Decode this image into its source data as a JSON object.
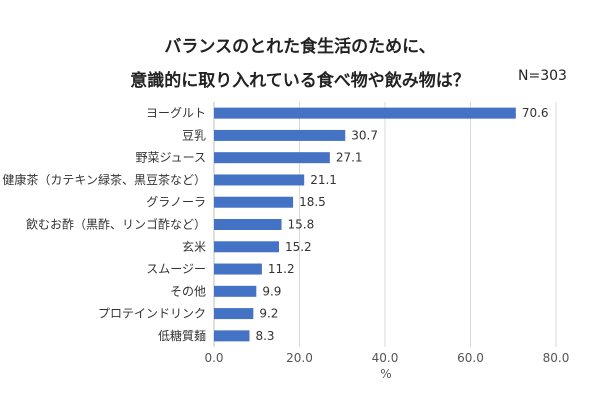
{
  "title_line1": "バランスのとれた食生活のために、",
  "title_line2": "意識的に取り入れている食べ物や飲み物は？",
  "n_label": "N=303",
  "chart_data": {
    "type": "bar",
    "orientation": "horizontal",
    "categories": [
      "ヨーグルト",
      "豆乳",
      "野菜ジュース",
      "健康茶（カテキン緑茶、黒豆茶など）",
      "グラノーラ",
      "飲むお酢（黒酢、リンゴ酢など）",
      "玄米",
      "スムージー",
      "その他",
      "プロテインドリンク",
      "低糖質麺"
    ],
    "values": [
      70.6,
      30.7,
      27.1,
      21.1,
      18.5,
      15.8,
      15.2,
      11.2,
      9.9,
      9.2,
      8.3
    ],
    "value_labels": [
      "70.6",
      "30.7",
      "27.1",
      "21.1",
      "18.5",
      "15.8",
      "15.2",
      "11.2",
      "9.9",
      "9.2",
      "8.3"
    ],
    "xlabel": "%",
    "xlim": [
      0,
      80
    ],
    "xticks": [
      "0.0",
      "20.0",
      "40.0",
      "60.0",
      "80.0"
    ],
    "xtick_values": [
      0,
      20,
      40,
      60,
      80
    ],
    "bar_color": "#4472C4",
    "grid": true
  }
}
